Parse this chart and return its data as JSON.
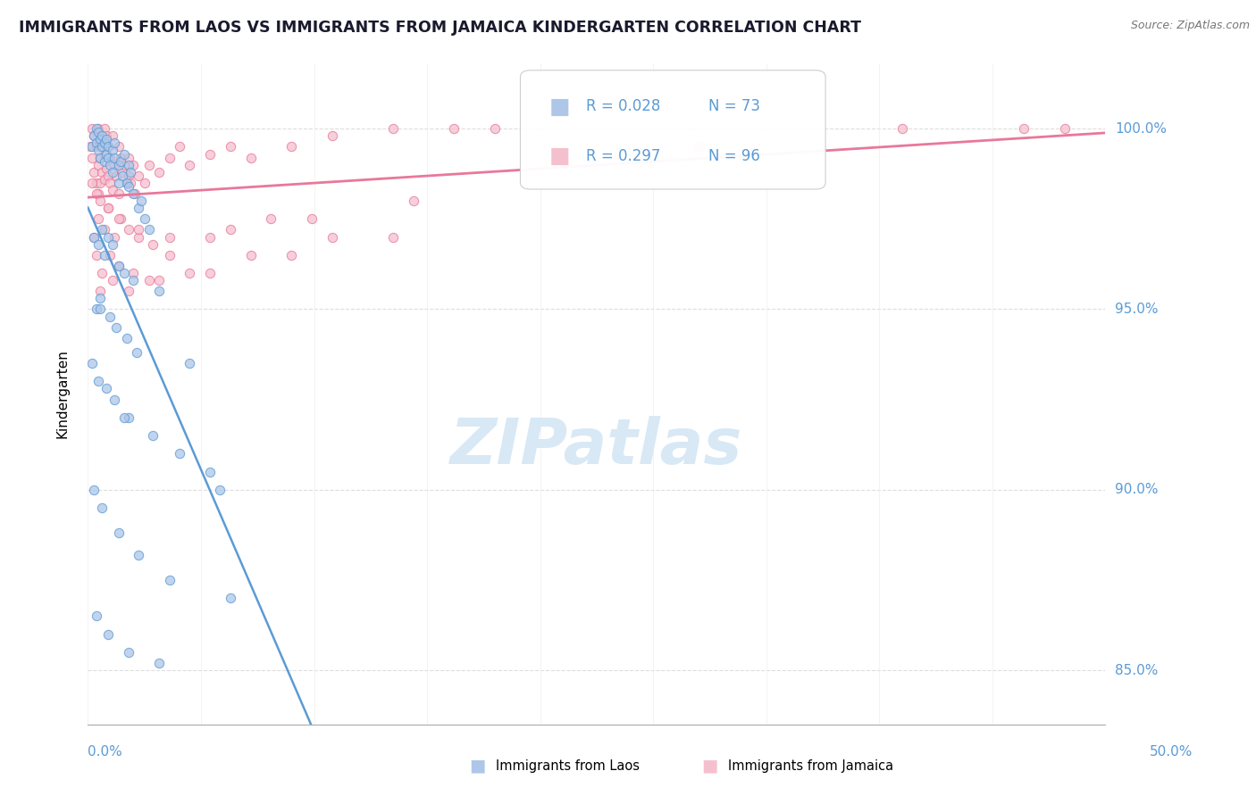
{
  "title": "IMMIGRANTS FROM LAOS VS IMMIGRANTS FROM JAMAICA KINDERGARTEN CORRELATION CHART",
  "source": "Source: ZipAtlas.com",
  "ylabel": "Kindergarten",
  "xmin": 0.0,
  "xmax": 50.0,
  "ymin": 83.5,
  "ymax": 101.8,
  "yticks": [
    85.0,
    90.0,
    95.0,
    100.0
  ],
  "ytick_labels": [
    "85.0%",
    "90.0%",
    "95.0%",
    "100.0%"
  ],
  "laos_color": "#aec6e8",
  "laos_edge_color": "#5b9bd5",
  "jamaica_color": "#f5c0ce",
  "jamaica_edge_color": "#e8789a",
  "laos_line_color": "#5b9bd5",
  "jamaica_line_color": "#e8789a",
  "R_laos": 0.028,
  "N_laos": 73,
  "R_jamaica": 0.297,
  "N_jamaica": 96,
  "text_color": "#5b9bd5",
  "watermark_color": "#d8e8f5",
  "laos_x": [
    0.2,
    0.3,
    0.4,
    0.4,
    0.5,
    0.5,
    0.6,
    0.6,
    0.7,
    0.7,
    0.8,
    0.8,
    0.9,
    0.9,
    1.0,
    1.0,
    1.1,
    1.2,
    1.2,
    1.3,
    1.3,
    1.5,
    1.5,
    1.6,
    1.7,
    1.8,
    1.9,
    2.0,
    2.0,
    2.1,
    2.2,
    2.5,
    2.6,
    2.8,
    3.0,
    0.3,
    0.5,
    0.7,
    0.8,
    1.0,
    1.2,
    1.5,
    1.8,
    2.2,
    3.5,
    0.4,
    0.6,
    1.1,
    1.4,
    1.9,
    2.4,
    0.2,
    0.5,
    0.9,
    1.3,
    2.0,
    3.2,
    4.5,
    6.0,
    0.3,
    0.7,
    1.5,
    2.5,
    4.0,
    7.0,
    0.4,
    1.0,
    2.0,
    3.5,
    6.5,
    0.6,
    1.8,
    5.0
  ],
  "laos_y": [
    99.5,
    99.8,
    99.6,
    100.0,
    99.4,
    99.9,
    99.7,
    99.2,
    99.5,
    99.8,
    99.1,
    99.6,
    99.3,
    99.7,
    99.2,
    99.5,
    99.0,
    99.4,
    98.8,
    99.2,
    99.6,
    99.0,
    98.5,
    99.1,
    98.7,
    99.3,
    98.5,
    99.0,
    98.4,
    98.8,
    98.2,
    97.8,
    98.0,
    97.5,
    97.2,
    97.0,
    96.8,
    97.2,
    96.5,
    97.0,
    96.8,
    96.2,
    96.0,
    95.8,
    95.5,
    95.0,
    95.3,
    94.8,
    94.5,
    94.2,
    93.8,
    93.5,
    93.0,
    92.8,
    92.5,
    92.0,
    91.5,
    91.0,
    90.5,
    90.0,
    89.5,
    88.8,
    88.2,
    87.5,
    87.0,
    86.5,
    86.0,
    85.5,
    85.2,
    90.0,
    95.0,
    92.0,
    93.5
  ],
  "jamaica_x": [
    0.1,
    0.2,
    0.2,
    0.3,
    0.3,
    0.4,
    0.4,
    0.5,
    0.5,
    0.5,
    0.6,
    0.6,
    0.6,
    0.7,
    0.7,
    0.8,
    0.8,
    0.8,
    0.9,
    0.9,
    1.0,
    1.0,
    1.1,
    1.1,
    1.2,
    1.2,
    1.3,
    1.4,
    1.5,
    1.5,
    1.6,
    1.7,
    1.8,
    1.9,
    2.0,
    2.0,
    2.1,
    2.2,
    2.3,
    2.5,
    2.8,
    3.0,
    3.5,
    4.0,
    4.5,
    5.0,
    6.0,
    7.0,
    8.0,
    10.0,
    12.0,
    15.0,
    18.0,
    20.0,
    0.3,
    0.5,
    0.8,
    1.0,
    1.3,
    1.6,
    2.0,
    2.5,
    3.2,
    4.0,
    6.0,
    9.0,
    0.4,
    0.7,
    1.1,
    1.5,
    2.2,
    3.0,
    5.0,
    8.0,
    12.0,
    0.6,
    1.2,
    2.0,
    3.5,
    6.0,
    10.0,
    15.0,
    0.2,
    0.4,
    0.6,
    1.0,
    1.5,
    2.5,
    4.0,
    7.0,
    11.0,
    16.0,
    30.0,
    40.0,
    46.0,
    48.0
  ],
  "jamaica_y": [
    99.5,
    100.0,
    99.2,
    99.8,
    98.8,
    99.5,
    98.5,
    100.0,
    99.0,
    98.2,
    99.7,
    99.2,
    98.5,
    99.5,
    98.8,
    100.0,
    99.3,
    98.6,
    99.8,
    98.9,
    99.5,
    98.7,
    99.2,
    98.5,
    99.8,
    98.3,
    99.0,
    98.7,
    99.5,
    98.2,
    99.2,
    98.8,
    99.0,
    98.5,
    99.2,
    98.7,
    98.5,
    99.0,
    98.2,
    98.7,
    98.5,
    99.0,
    98.8,
    99.2,
    99.5,
    99.0,
    99.3,
    99.5,
    99.2,
    99.5,
    99.8,
    100.0,
    100.0,
    100.0,
    97.0,
    97.5,
    97.2,
    97.8,
    97.0,
    97.5,
    97.2,
    97.0,
    96.8,
    96.5,
    97.0,
    97.5,
    96.5,
    96.0,
    96.5,
    96.2,
    96.0,
    95.8,
    96.0,
    96.5,
    97.0,
    95.5,
    95.8,
    95.5,
    95.8,
    96.0,
    96.5,
    97.0,
    98.5,
    98.2,
    98.0,
    97.8,
    97.5,
    97.2,
    97.0,
    97.2,
    97.5,
    98.0,
    99.5,
    100.0,
    100.0,
    100.0
  ]
}
